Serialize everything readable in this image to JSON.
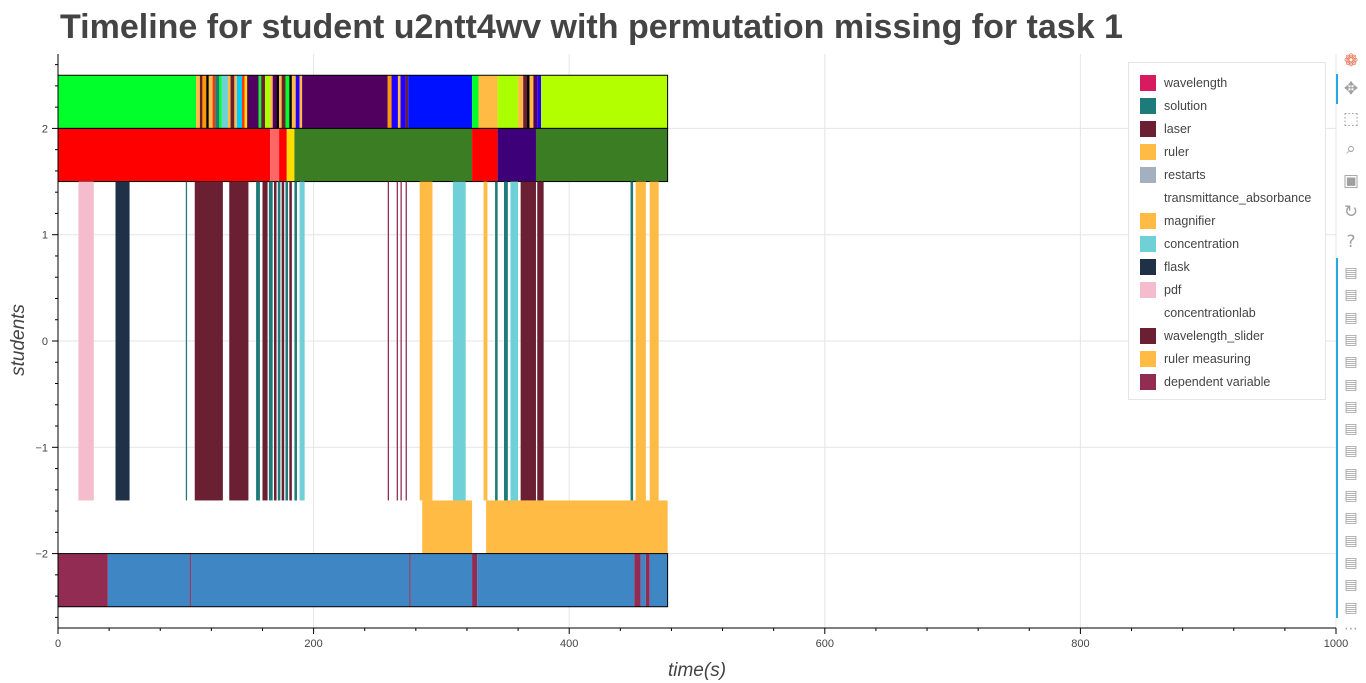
{
  "chart_data": {
    "type": "bar",
    "orientation": "horizontal-timeline",
    "title": "Timeline for student u2ntt4wv with permutation missing for task 1",
    "xlabel": "time(s)",
    "ylabel": "students",
    "xlim": [
      0,
      1000
    ],
    "ylim": [
      -2.7,
      2.7
    ],
    "x_ticks": [
      0,
      200,
      400,
      600,
      800,
      1000
    ],
    "y_ticks": [
      2,
      1,
      0,
      -1,
      -2
    ],
    "y_tick_labels": [
      "2",
      "1",
      "0",
      "−1",
      "−2"
    ],
    "grid": true,
    "legend_position": "top-right",
    "legend": [
      {
        "name": "wavelength",
        "color": "#d81b60"
      },
      {
        "name": "solution",
        "color": "#1f7a7a"
      },
      {
        "name": "laser",
        "color": "#6b1f33"
      },
      {
        "name": "ruler",
        "color": "#ffbb44"
      },
      {
        "name": "restarts",
        "color": "#a4b0c0"
      },
      {
        "name": "transmittance_absorbance",
        "color": "#ffffff"
      },
      {
        "name": "magnifier",
        "color": "#ffbb44"
      },
      {
        "name": "concentration",
        "color": "#6fd0d8"
      },
      {
        "name": "flask",
        "color": "#1e3147"
      },
      {
        "name": "pdf",
        "color": "#f4bccc"
      },
      {
        "name": "concentrationlab",
        "color": "#ffffff"
      },
      {
        "name": "wavelength_slider",
        "color": "#6b1f33"
      },
      {
        "name": "ruler measuring",
        "color": "#ffbb44"
      },
      {
        "name": "dependent variable",
        "color": "#922c52"
      }
    ],
    "rows": [
      {
        "y0": 2,
        "y1": 2.5,
        "border": true,
        "segments": [
          {
            "x0": 0,
            "x1": 108,
            "color": "#00ff2b"
          },
          {
            "x0": 108,
            "x1": 111,
            "color": "#ffbb44"
          },
          {
            "x0": 111,
            "x1": 113,
            "color": "#6b1f33"
          },
          {
            "x0": 113,
            "x1": 116,
            "color": "#ff9900"
          },
          {
            "x0": 116,
            "x1": 118,
            "color": "#000000"
          },
          {
            "x0": 118,
            "x1": 121,
            "color": "#ffbb44"
          },
          {
            "x0": 121,
            "x1": 123,
            "color": "#ff3300"
          },
          {
            "x0": 123,
            "x1": 126,
            "color": "#1f7a7a"
          },
          {
            "x0": 126,
            "x1": 128,
            "color": "#00ff2b"
          },
          {
            "x0": 128,
            "x1": 133,
            "color": "#6fd0d8"
          },
          {
            "x0": 133,
            "x1": 135,
            "color": "#ffbb44"
          },
          {
            "x0": 135,
            "x1": 138,
            "color": "#6b1f33"
          },
          {
            "x0": 138,
            "x1": 140,
            "color": "#ffbb44"
          },
          {
            "x0": 140,
            "x1": 144,
            "color": "#00ccff"
          },
          {
            "x0": 144,
            "x1": 146,
            "color": "#ff3300"
          },
          {
            "x0": 146,
            "x1": 148,
            "color": "#ffdd00"
          },
          {
            "x0": 148,
            "x1": 157,
            "color": "#520060"
          },
          {
            "x0": 157,
            "x1": 159,
            "color": "#00ff2b"
          },
          {
            "x0": 159,
            "x1": 162,
            "color": "#6b1f33"
          },
          {
            "x0": 162,
            "x1": 166,
            "color": "#aaff00"
          },
          {
            "x0": 166,
            "x1": 168,
            "color": "#ffbb44"
          },
          {
            "x0": 168,
            "x1": 171,
            "color": "#520060"
          },
          {
            "x0": 171,
            "x1": 173,
            "color": "#000000"
          },
          {
            "x0": 173,
            "x1": 175,
            "color": "#ffbb44"
          },
          {
            "x0": 175,
            "x1": 178,
            "color": "#6b1f33"
          },
          {
            "x0": 178,
            "x1": 181,
            "color": "#00ff2b"
          },
          {
            "x0": 181,
            "x1": 183,
            "color": "#000000"
          },
          {
            "x0": 183,
            "x1": 186,
            "color": "#ffbb44"
          },
          {
            "x0": 186,
            "x1": 189,
            "color": "#2200ff"
          },
          {
            "x0": 189,
            "x1": 191,
            "color": "#ffbb44"
          },
          {
            "x0": 191,
            "x1": 258,
            "color": "#520060"
          },
          {
            "x0": 258,
            "x1": 261,
            "color": "#ff9900"
          },
          {
            "x0": 261,
            "x1": 266,
            "color": "#2200ff"
          },
          {
            "x0": 266,
            "x1": 268,
            "color": "#ffbb44"
          },
          {
            "x0": 268,
            "x1": 272,
            "color": "#2200ff"
          },
          {
            "x0": 272,
            "x1": 274,
            "color": "#6b1f33"
          },
          {
            "x0": 274,
            "x1": 324,
            "color": "#0011ff"
          },
          {
            "x0": 324,
            "x1": 329,
            "color": "#00ff2b"
          },
          {
            "x0": 329,
            "x1": 344,
            "color": "#ffbb44"
          },
          {
            "x0": 344,
            "x1": 360,
            "color": "#aaff00"
          },
          {
            "x0": 360,
            "x1": 364,
            "color": "#ffbb44"
          },
          {
            "x0": 364,
            "x1": 367,
            "color": "#6b1f33"
          },
          {
            "x0": 367,
            "x1": 369,
            "color": "#000000"
          },
          {
            "x0": 369,
            "x1": 372,
            "color": "#ffbb44"
          },
          {
            "x0": 372,
            "x1": 375,
            "color": "#520060"
          },
          {
            "x0": 375,
            "x1": 378,
            "color": "#2200ff"
          },
          {
            "x0": 378,
            "x1": 477,
            "color": "#b3ff00"
          }
        ]
      },
      {
        "y0": 1.5,
        "y1": 2,
        "border": true,
        "segments": [
          {
            "x0": 0,
            "x1": 166,
            "color": "#ff0000"
          },
          {
            "x0": 166,
            "x1": 173,
            "color": "#ff6666"
          },
          {
            "x0": 173,
            "x1": 179,
            "color": "#ff0000"
          },
          {
            "x0": 179,
            "x1": 185,
            "color": "#ffdd00"
          },
          {
            "x0": 185,
            "x1": 324,
            "color": "#3a7d22"
          },
          {
            "x0": 324,
            "x1": 344,
            "color": "#ff0000"
          },
          {
            "x0": 344,
            "x1": 374,
            "color": "#3e0078"
          },
          {
            "x0": 374,
            "x1": 477,
            "color": "#3a7d22"
          }
        ]
      },
      {
        "y0": -1.5,
        "y1": 1.5,
        "border": false,
        "segments": [
          {
            "x0": 16,
            "x1": 28,
            "color": "#f4bccc"
          },
          {
            "x0": 45,
            "x1": 56,
            "color": "#1e3147"
          },
          {
            "x0": 100,
            "x1": 101,
            "color": "#1f7a7a"
          },
          {
            "x0": 107,
            "x1": 129,
            "color": "#6b1f33"
          },
          {
            "x0": 134,
            "x1": 149,
            "color": "#6b1f33"
          },
          {
            "x0": 155,
            "x1": 158,
            "color": "#1f7a7a"
          },
          {
            "x0": 160,
            "x1": 164,
            "color": "#6b1f33"
          },
          {
            "x0": 165,
            "x1": 168,
            "color": "#1f7a7a"
          },
          {
            "x0": 169,
            "x1": 171,
            "color": "#6b1f33"
          },
          {
            "x0": 172,
            "x1": 174,
            "color": "#1f7a7a"
          },
          {
            "x0": 175,
            "x1": 177,
            "color": "#6b1f33"
          },
          {
            "x0": 178,
            "x1": 180,
            "color": "#1f7a7a"
          },
          {
            "x0": 181,
            "x1": 183,
            "color": "#6b1f33"
          },
          {
            "x0": 185,
            "x1": 187,
            "color": "#1f7a7a"
          },
          {
            "x0": 189,
            "x1": 193,
            "color": "#6fd0d8"
          },
          {
            "x0": 258,
            "x1": 259,
            "color": "#922c52"
          },
          {
            "x0": 265,
            "x1": 266,
            "color": "#922c52"
          },
          {
            "x0": 268,
            "x1": 269,
            "color": "#922c52"
          },
          {
            "x0": 272,
            "x1": 273,
            "color": "#922c52"
          },
          {
            "x0": 283,
            "x1": 293,
            "color": "#ffbb44"
          },
          {
            "x0": 309,
            "x1": 319,
            "color": "#6fd0d8"
          },
          {
            "x0": 333,
            "x1": 336,
            "color": "#ffbb44"
          },
          {
            "x0": 342,
            "x1": 344,
            "color": "#1f7a7a"
          },
          {
            "x0": 349,
            "x1": 352,
            "color": "#1f7a7a"
          },
          {
            "x0": 354,
            "x1": 360,
            "color": "#6fd0d8"
          },
          {
            "x0": 362,
            "x1": 374,
            "color": "#6b1f33"
          },
          {
            "x0": 375,
            "x1": 380,
            "color": "#6b1f33"
          },
          {
            "x0": 448,
            "x1": 450,
            "color": "#1f7a7a"
          },
          {
            "x0": 452,
            "x1": 460,
            "color": "#ffbb44"
          },
          {
            "x0": 463,
            "x1": 470,
            "color": "#ffbb44"
          }
        ]
      },
      {
        "y0": -2,
        "y1": -1.5,
        "border": false,
        "segments": [
          {
            "x0": 285,
            "x1": 324,
            "color": "#ffbb44"
          },
          {
            "x0": 335,
            "x1": 477,
            "color": "#ffbb44"
          }
        ]
      },
      {
        "y0": -2.5,
        "y1": -2,
        "border": true,
        "segments": [
          {
            "x0": 0,
            "x1": 39,
            "color": "#922c52"
          },
          {
            "x0": 39,
            "x1": 103,
            "color": "#3e86c4"
          },
          {
            "x0": 103,
            "x1": 104,
            "color": "#922c52"
          },
          {
            "x0": 104,
            "x1": 275,
            "color": "#3e86c4"
          },
          {
            "x0": 275,
            "x1": 276,
            "color": "#922c52"
          },
          {
            "x0": 276,
            "x1": 324,
            "color": "#3e86c4"
          },
          {
            "x0": 324,
            "x1": 328,
            "color": "#922c52"
          },
          {
            "x0": 328,
            "x1": 451,
            "color": "#3e86c4"
          },
          {
            "x0": 451,
            "x1": 456,
            "color": "#922c52"
          },
          {
            "x0": 456,
            "x1": 460,
            "color": "#3e86c4"
          },
          {
            "x0": 460,
            "x1": 463,
            "color": "#922c52"
          },
          {
            "x0": 463,
            "x1": 477,
            "color": "#3e86c4"
          }
        ]
      }
    ]
  },
  "toolbar": {
    "tools": [
      {
        "name": "bokeh-logo-icon",
        "glyph": "❁",
        "color": "#e76f51"
      },
      {
        "name": "pan-icon",
        "glyph": "✥",
        "color": "#a0a0a0"
      },
      {
        "name": "box-zoom-icon",
        "glyph": "⬚",
        "color": "#a0a0a0"
      },
      {
        "name": "wheel-zoom-icon",
        "glyph": "⌕",
        "color": "#a0a0a0"
      },
      {
        "name": "save-icon",
        "glyph": "▣",
        "color": "#a0a0a0"
      },
      {
        "name": "reset-icon",
        "glyph": "↻",
        "color": "#a0a0a0"
      },
      {
        "name": "help-icon",
        "glyph": "?",
        "color": "#a0a0a0"
      }
    ],
    "hover_tool_count": 16,
    "hover_icon": "▤",
    "more_icon": "⋯"
  }
}
